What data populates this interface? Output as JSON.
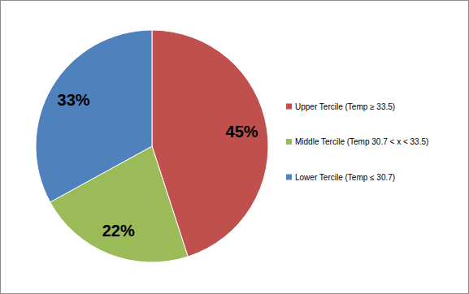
{
  "chart_data": {
    "type": "pie",
    "categories": [
      "Upper Tercile (Temp ≥ 33.5)",
      "Middle Tercile (Temp 30.7 < x < 33.5)",
      "Lower Tercile (Temp ≤ 30.7)"
    ],
    "values": [
      45,
      22,
      33
    ],
    "value_labels": [
      "45%",
      "22%",
      "33%"
    ],
    "colors": [
      "#C0504D",
      "#9BBB59",
      "#4F81BD"
    ],
    "data_labels": true,
    "legend": "right"
  }
}
